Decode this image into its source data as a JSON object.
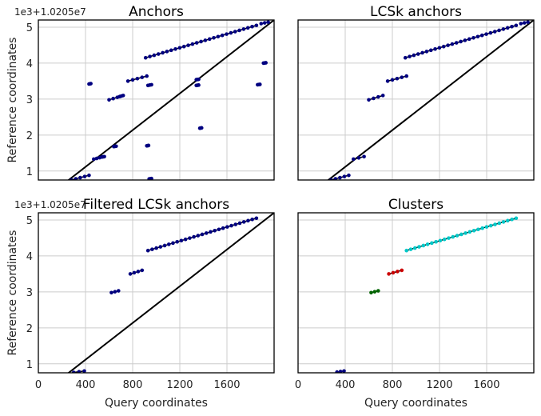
{
  "figure": {
    "ylabel": "Reference coordinates",
    "xlabel": "Query coordinates",
    "y_offset_text": "1e3+1.0205e7"
  },
  "chart_data": [
    {
      "type": "scatter",
      "title": "Anchors",
      "xlim": [
        0,
        2000
      ],
      "ylim": [
        0.75,
        5.2
      ],
      "xticks": [],
      "yticks": [
        "1",
        "2",
        "3",
        "4",
        "5"
      ],
      "ylabel": "Reference coordinates",
      "offset_text": "1e3+1.0205e7",
      "diagonal": [
        [
          120,
          0.4
        ],
        [
          2000,
          5.2
        ]
      ],
      "series": [
        {
          "color": "#000080",
          "segments": [
            [
              [
                280,
                0.75
              ],
              [
                430,
                0.88
              ]
            ],
            [
              [
                600,
                2.98
              ],
              [
                670,
                3.05
              ]
            ],
            [
              [
                690,
                3.07
              ],
              [
                720,
                3.1
              ]
            ],
            [
              [
                430,
                3.42
              ],
              [
                445,
                3.43
              ]
            ],
            [
              [
                760,
                3.5
              ],
              [
                920,
                3.64
              ]
            ],
            [
              [
                910,
                4.15
              ],
              [
                1850,
                5.05
              ]
            ],
            [
              [
                1890,
                5.1
              ],
              [
                1950,
                5.14
              ]
            ],
            [
              [
                920,
                1.7
              ],
              [
                935,
                1.71
              ]
            ],
            [
              [
                930,
                3.38
              ],
              [
                960,
                3.4
              ]
            ],
            [
              [
                640,
                1.68
              ],
              [
                660,
                1.69
              ]
            ],
            [
              [
                470,
                1.33
              ],
              [
                520,
                1.37
              ]
            ],
            [
              [
                540,
                1.39
              ],
              [
                560,
                1.4
              ]
            ],
            [
              [
                940,
                0.78
              ],
              [
                960,
                0.79
              ]
            ],
            [
              [
                1340,
                3.54
              ],
              [
                1360,
                3.55
              ]
            ],
            [
              [
                1340,
                3.38
              ],
              [
                1360,
                3.39
              ]
            ],
            [
              [
                1370,
                2.19
              ],
              [
                1385,
                2.2
              ]
            ],
            [
              [
                1860,
                3.4
              ],
              [
                1880,
                3.41
              ]
            ],
            [
              [
                1910,
                4.0
              ],
              [
                1930,
                4.01
              ]
            ]
          ]
        }
      ]
    },
    {
      "type": "scatter",
      "title": "LCSk anchors",
      "xlim": [
        0,
        2000
      ],
      "ylim": [
        0.75,
        5.2
      ],
      "xticks": [],
      "yticks": [],
      "diagonal": [
        [
          120,
          0.4
        ],
        [
          2000,
          5.2
        ]
      ],
      "series": [
        {
          "color": "#000080",
          "segments": [
            [
              [
                280,
                0.75
              ],
              [
                430,
                0.88
              ]
            ],
            [
              [
                470,
                1.33
              ],
              [
                560,
                1.4
              ]
            ],
            [
              [
                600,
                2.98
              ],
              [
                720,
                3.1
              ]
            ],
            [
              [
                760,
                3.5
              ],
              [
                920,
                3.64
              ]
            ],
            [
              [
                910,
                4.15
              ],
              [
                1850,
                5.05
              ]
            ],
            [
              [
                1890,
                5.1
              ],
              [
                1950,
                5.14
              ]
            ]
          ]
        }
      ]
    },
    {
      "type": "scatter",
      "title": "Filtered LCSk anchors",
      "xlim": [
        0,
        2000
      ],
      "ylim": [
        0.75,
        5.2
      ],
      "xticks": [
        "0",
        "400",
        "800",
        "1200",
        "1600"
      ],
      "xtick_values": [
        0,
        400,
        800,
        1200,
        1600
      ],
      "yticks": [
        "1",
        "2",
        "3",
        "4",
        "5"
      ],
      "ylabel": "Reference coordinates",
      "xlabel": "Query coordinates",
      "offset_text": "1e3+1.0205e7",
      "diagonal": [
        [
          120,
          0.4
        ],
        [
          2000,
          5.2
        ]
      ],
      "series": [
        {
          "color": "#000080",
          "segments": [
            [
              [
                300,
                0.76
              ],
              [
                390,
                0.8
              ]
            ],
            [
              [
                620,
                2.98
              ],
              [
                680,
                3.03
              ]
            ],
            [
              [
                780,
                3.5
              ],
              [
                880,
                3.6
              ]
            ],
            [
              [
                930,
                4.15
              ],
              [
                1850,
                5.05
              ]
            ]
          ]
        }
      ]
    },
    {
      "type": "scatter",
      "title": "Clusters",
      "xlim": [
        0,
        2000
      ],
      "ylim": [
        0.75,
        5.2
      ],
      "xticks": [
        "0",
        "400",
        "800",
        "1200",
        "1600"
      ],
      "xtick_values": [
        0,
        400,
        800,
        1200,
        1600
      ],
      "yticks": [],
      "xlabel": "Query coordinates",
      "diagonal": [],
      "series": [
        {
          "color": "#000080",
          "segments": [
            [
              [
                330,
                0.77
              ],
              [
                390,
                0.8
              ]
            ]
          ]
        },
        {
          "color": "#006400",
          "segments": [
            [
              [
                620,
                2.98
              ],
              [
                680,
                3.03
              ]
            ]
          ]
        },
        {
          "color": "#cc0000",
          "segments": [
            [
              [
                770,
                3.5
              ],
              [
                880,
                3.6
              ]
            ]
          ]
        },
        {
          "color": "#00c8c8",
          "segments": [
            [
              [
                920,
                4.15
              ],
              [
                1850,
                5.05
              ]
            ]
          ]
        }
      ]
    }
  ]
}
